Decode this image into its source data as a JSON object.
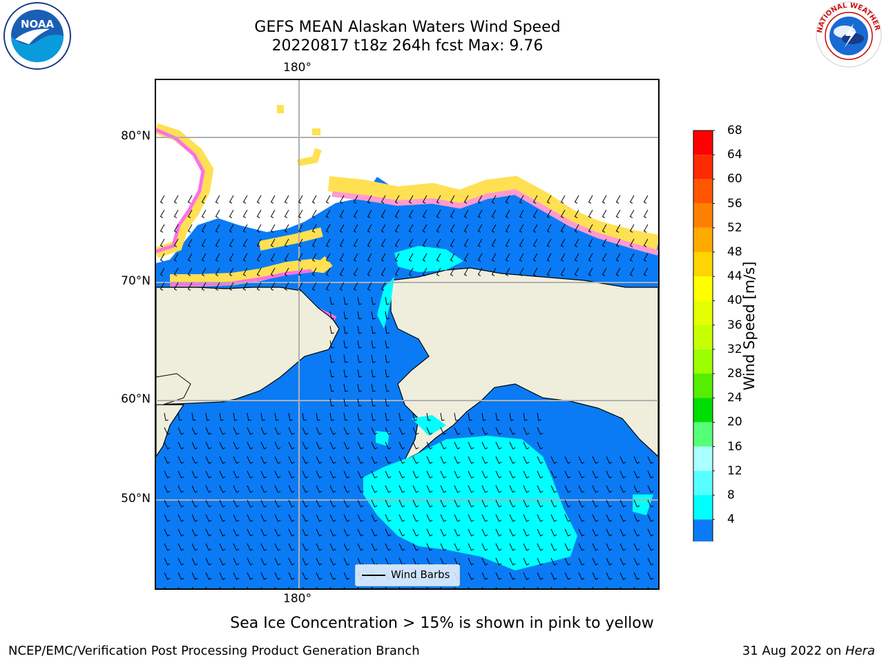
{
  "title": {
    "line1": "GEFS MEAN Alaskan Waters Wind Speed",
    "line2": "20220817 t18z 264h fcst   Max: 9.76"
  },
  "logos": {
    "noaa": {
      "text": "NOAA",
      "icon": "noaa-logo-icon"
    },
    "nws": {
      "text": "NATIONAL WEATHER SERVICE",
      "icon": "nws-logo-icon"
    }
  },
  "map": {
    "lon_labels": {
      "top": "180°",
      "bottom": "180°"
    },
    "lat_labels": [
      "80°N",
      "70°N",
      "60°N",
      "50°N"
    ],
    "colors": {
      "land": "#efeedc",
      "ocean_low": "#0a7bf5",
      "ocean_mid": "#00ffff",
      "ice_pink": "#ff6ee8",
      "ice_yellow": "#ffe052",
      "gridline": "#b0b0b0"
    },
    "legend": {
      "label": "Wind Barbs"
    }
  },
  "colorbar": {
    "label": "Wind Speed [m/s]",
    "ticks": [
      "68",
      "64",
      "60",
      "56",
      "52",
      "48",
      "44",
      "40",
      "36",
      "32",
      "28",
      "24",
      "20",
      "16",
      "12",
      "8",
      "4"
    ],
    "colors": [
      "#ff0000",
      "#ff2a00",
      "#ff5500",
      "#ff8000",
      "#ffaa00",
      "#ffd400",
      "#ffff00",
      "#e5ff00",
      "#c8ff00",
      "#9bff00",
      "#55ee00",
      "#00dd00",
      "#55ff77",
      "#aaffff",
      "#55ffff",
      "#00ffff",
      "#0a7bf5"
    ],
    "extend_color": "#0000ff"
  },
  "note": "Sea Ice Concentration > 15% is shown in pink to yellow",
  "footer": {
    "left": "NCEP/EMC/Verification Post Processing Product Generation Branch",
    "right_prefix": "31 Aug 2022 on ",
    "right_host": "Hera"
  }
}
